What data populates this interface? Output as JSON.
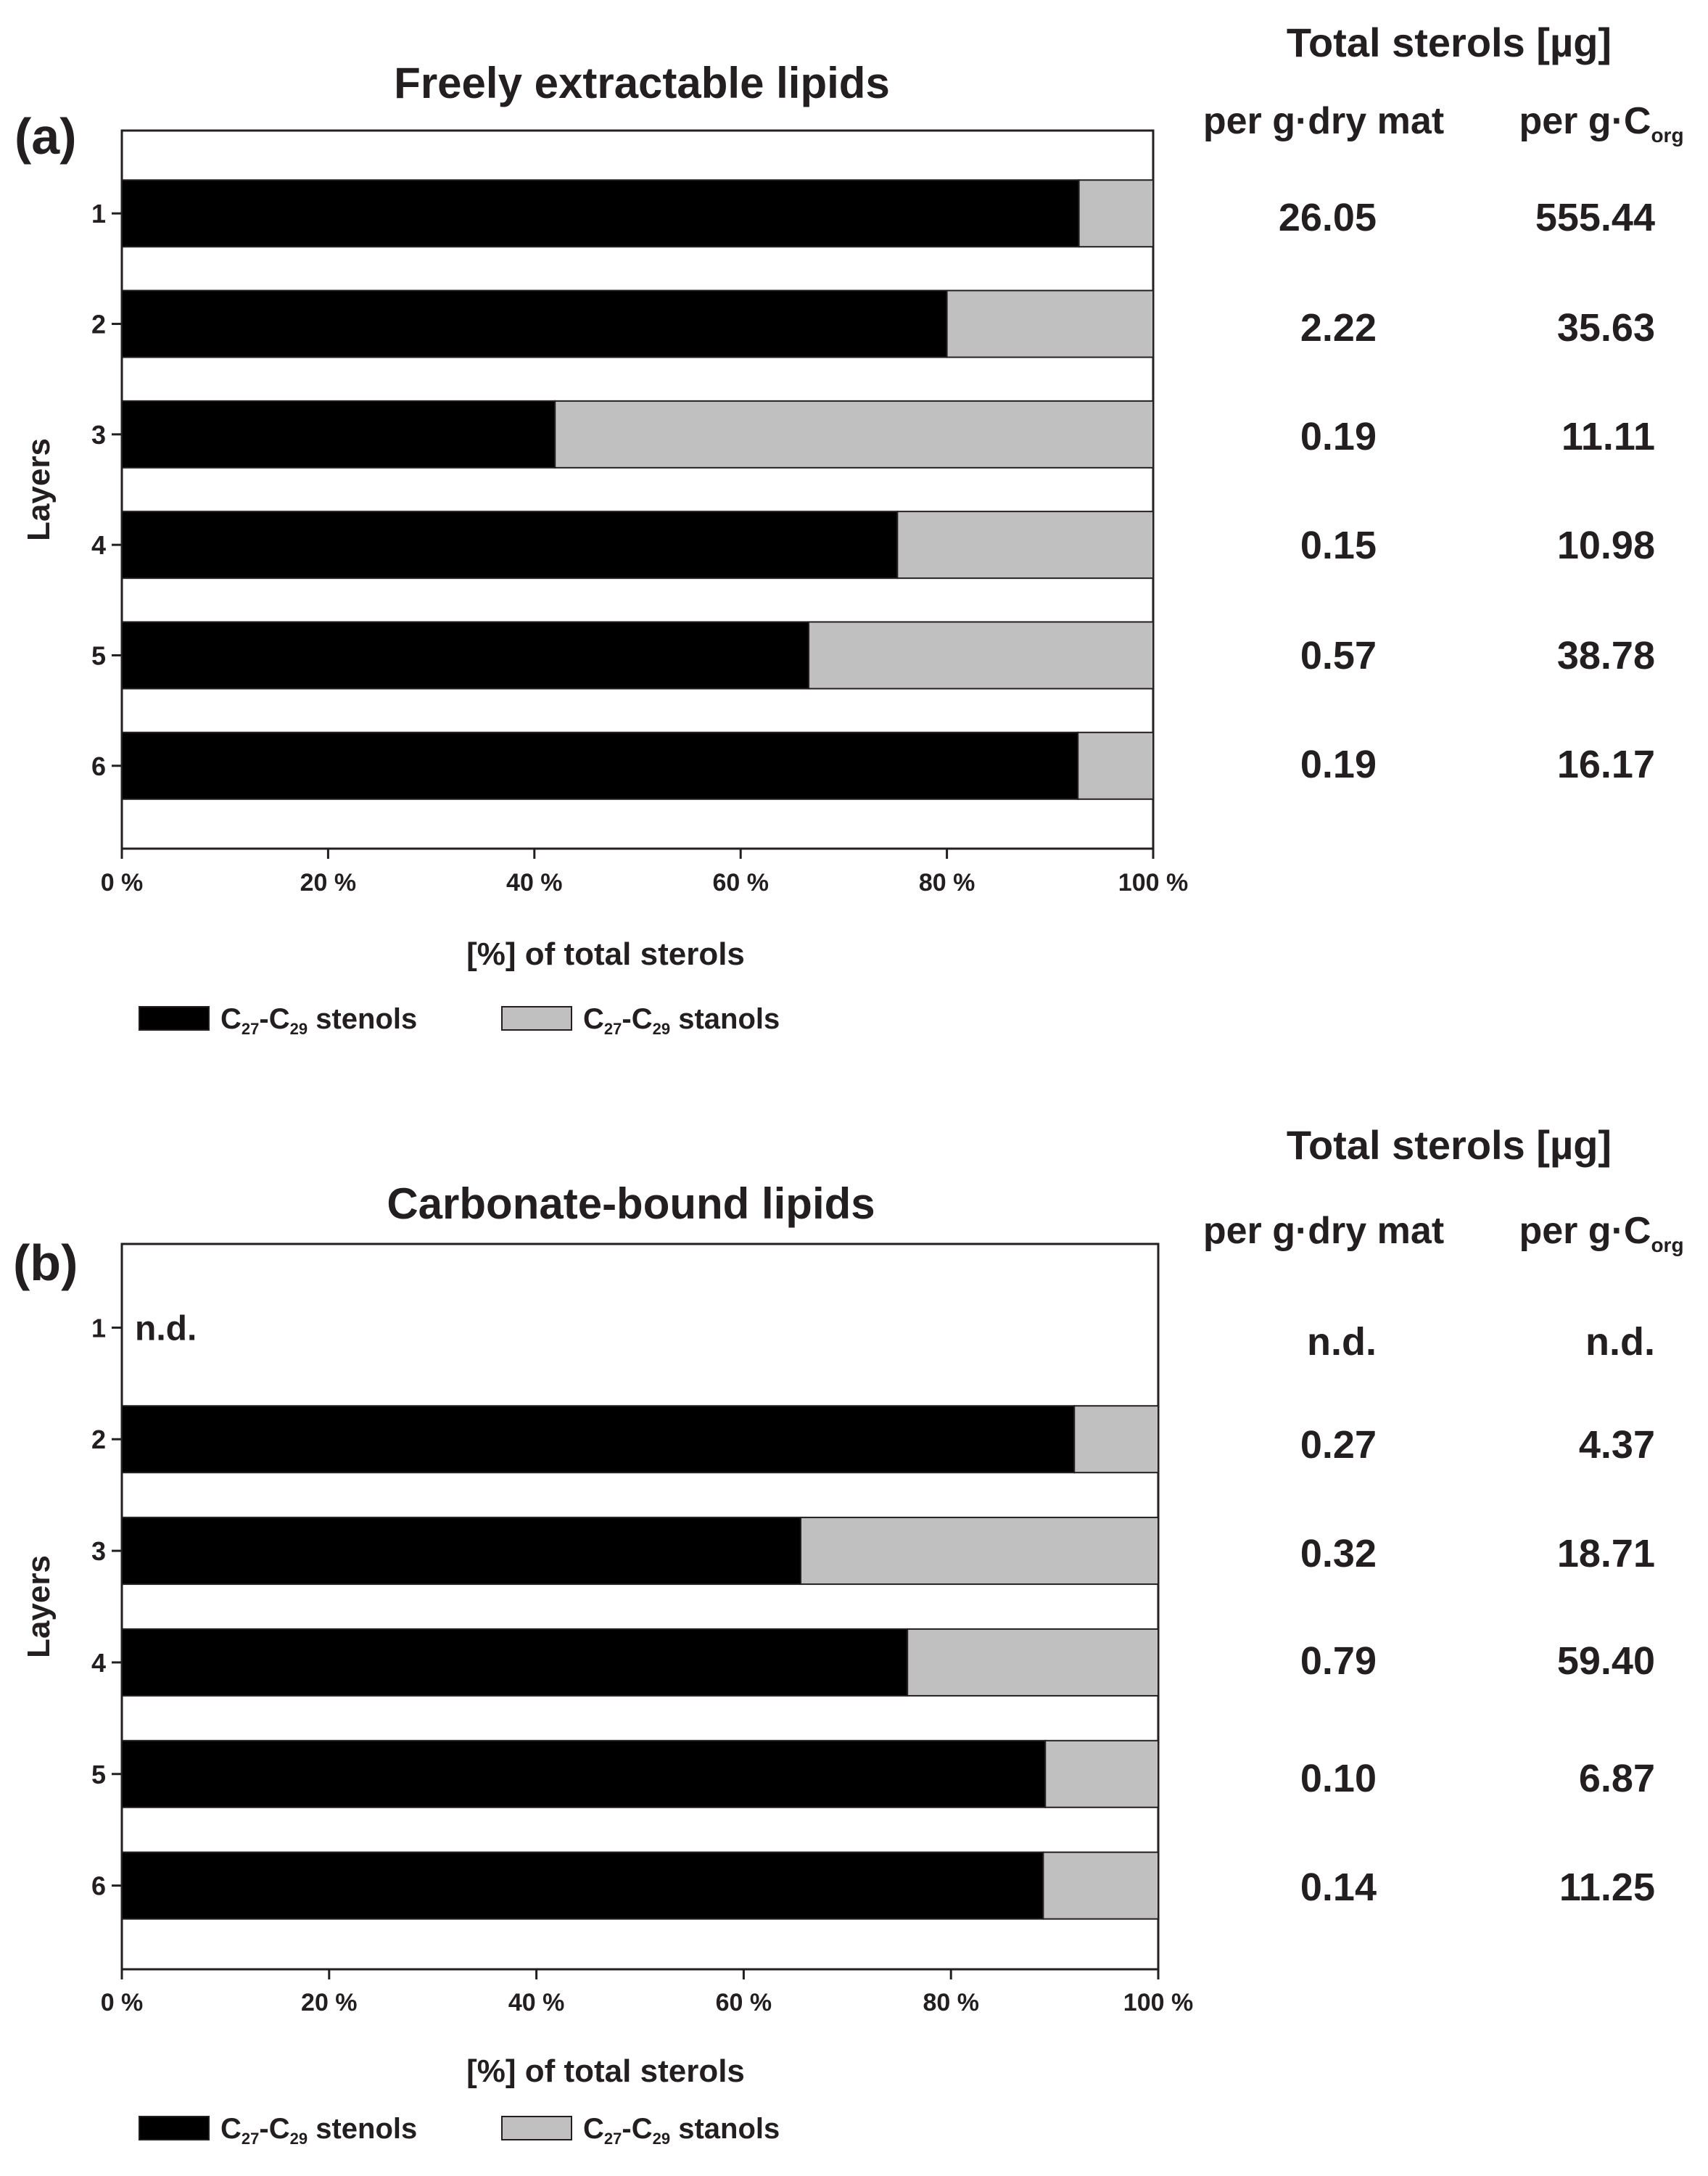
{
  "chart_data": [
    {
      "type": "bar",
      "orientation": "horizontal",
      "stacked": true,
      "panel_tag": "(a)",
      "title": "Freely extractable lipids",
      "xlabel_bracket": "[%]",
      "xlabel_rest": "of total sterols",
      "ylabel": "Layers",
      "xlim": [
        0,
        100
      ],
      "x_ticks": [
        "0 %",
        "20 %",
        "40 %",
        "60 %",
        "80 %",
        "100 %"
      ],
      "categories": [
        "1",
        "2",
        "3",
        "4",
        "5",
        "6"
      ],
      "series": [
        {
          "values": [
            92.8,
            80.0,
            42.0,
            75.2,
            66.6,
            92.7
          ],
          "color": "#000000"
        },
        {
          "values": [
            7.2,
            20.0,
            58.0,
            24.8,
            33.4,
            7.3
          ],
          "color": "#c0c0c0"
        }
      ],
      "legend": [
        {
          "base": "C",
          "sub1": "27",
          "mid": "-C",
          "sub2": "29",
          "rest": " stenols",
          "color": "#000000"
        },
        {
          "base": "C",
          "sub1": "27",
          "mid": "-C",
          "sub2": "29",
          "rest": " stanols",
          "color": "#c0c0c0"
        }
      ],
      "side_table": {
        "heading": "Total sterols [µg]",
        "col1": "per g·dry mat",
        "col2_base": "per g·C",
        "col2_sub": "org",
        "rows": [
          [
            "26.05",
            "555.44"
          ],
          [
            "2.22",
            "35.63"
          ],
          [
            "0.19",
            "11.11"
          ],
          [
            "0.15",
            "10.98"
          ],
          [
            "0.57",
            "38.78"
          ],
          [
            "0.19",
            "16.17"
          ]
        ]
      }
    },
    {
      "type": "bar",
      "orientation": "horizontal",
      "stacked": true,
      "panel_tag": "(b)",
      "title": "Carbonate-bound lipids",
      "xlabel_bracket": "[%]",
      "xlabel_rest": "of total sterols",
      "ylabel": "Layers",
      "xlim": [
        0,
        100
      ],
      "x_ticks": [
        "0 %",
        "20 %",
        "40 %",
        "60 %",
        "80 %",
        "100 %"
      ],
      "categories": [
        "1",
        "2",
        "3",
        "4",
        "5",
        "6"
      ],
      "not_detected_label": "n.d.",
      "series": [
        {
          "values": [
            null,
            91.9,
            65.5,
            75.8,
            89.1,
            88.9
          ],
          "color": "#000000"
        },
        {
          "values": [
            null,
            8.1,
            34.5,
            24.2,
            10.9,
            11.1
          ],
          "color": "#c0c0c0"
        }
      ],
      "legend": [
        {
          "base": "C",
          "sub1": "27",
          "mid": "-C",
          "sub2": "29",
          "rest": " stenols",
          "color": "#000000"
        },
        {
          "base": "C",
          "sub1": "27",
          "mid": "-C",
          "sub2": "29",
          "rest": " stanols",
          "color": "#c0c0c0"
        }
      ],
      "side_table": {
        "heading": "Total sterols [µg]",
        "col1": "per g·dry mat",
        "col2_base": "per g·C",
        "col2_sub": "org",
        "rows": [
          [
            "n.d.",
            "n.d."
          ],
          [
            "0.27",
            "4.37"
          ],
          [
            "0.32",
            "18.71"
          ],
          [
            "0.79",
            "59.40"
          ],
          [
            "0.10",
            "6.87"
          ],
          [
            "0.14",
            "11.25"
          ]
        ]
      }
    }
  ]
}
